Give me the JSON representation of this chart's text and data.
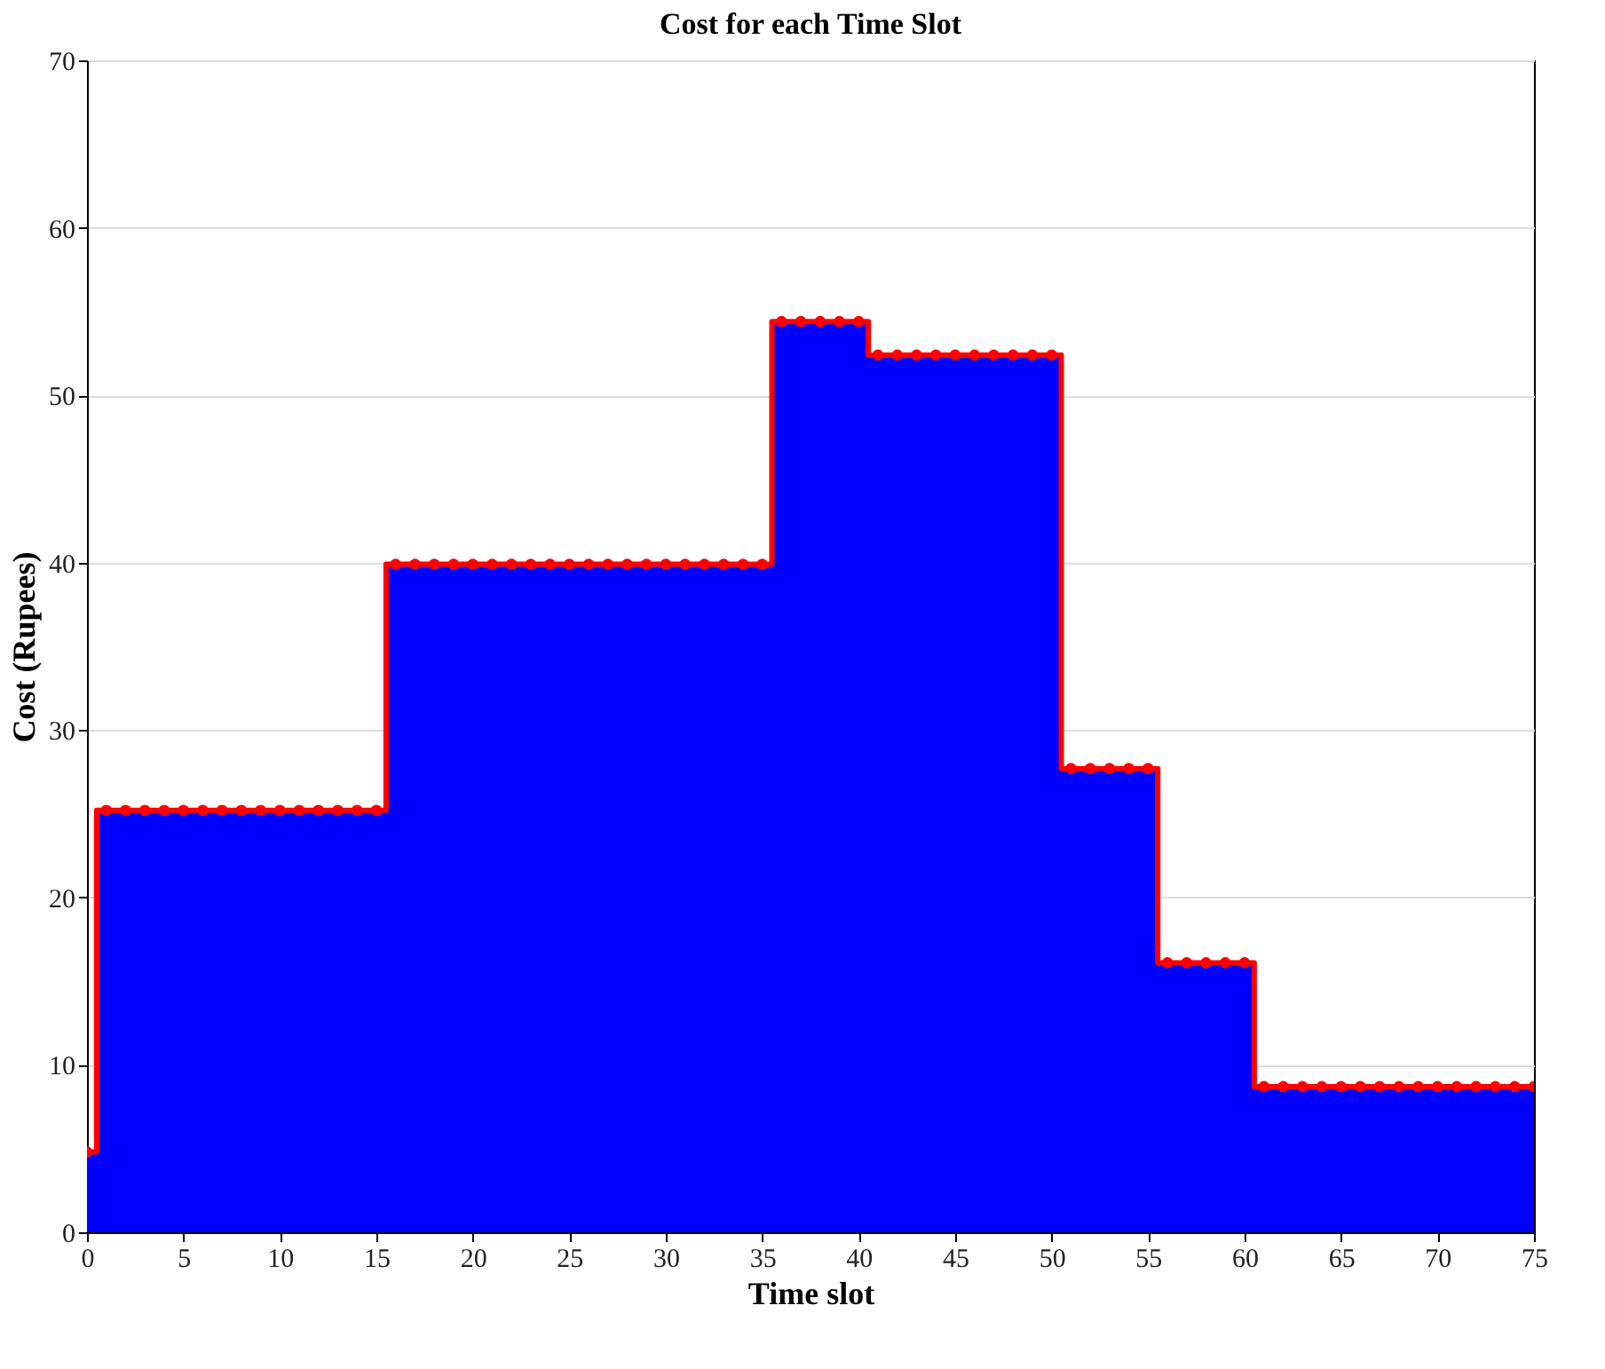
{
  "chart_data": {
    "type": "step",
    "title": "Cost for each Time Slot",
    "xlabel": "Time slot",
    "ylabel": "Cost (Rupees)",
    "x": [
      0,
      1,
      2,
      3,
      4,
      5,
      6,
      7,
      8,
      9,
      10,
      11,
      12,
      13,
      14,
      15,
      16,
      17,
      18,
      19,
      20,
      21,
      22,
      23,
      24,
      25,
      26,
      27,
      28,
      29,
      30,
      31,
      32,
      33,
      34,
      35,
      36,
      37,
      38,
      39,
      40,
      41,
      42,
      43,
      44,
      45,
      46,
      47,
      48,
      49,
      50,
      51,
      52,
      53,
      54,
      55,
      56,
      57,
      58,
      59,
      60,
      61,
      62,
      63,
      64,
      65,
      66,
      67,
      68,
      69,
      70,
      71,
      72,
      73,
      74,
      75
    ],
    "series": [
      {
        "type": "area",
        "color": "#0000ff",
        "values": [
          4.8,
          25.2,
          25.2,
          25.2,
          25.2,
          25.2,
          25.2,
          25.2,
          25.2,
          25.2,
          25.2,
          25.2,
          25.2,
          25.2,
          25.2,
          25.2,
          39.9,
          39.9,
          39.9,
          39.9,
          39.9,
          39.9,
          39.9,
          39.9,
          39.9,
          39.9,
          39.9,
          39.9,
          39.9,
          39.9,
          39.9,
          39.9,
          39.9,
          39.9,
          39.9,
          39.9,
          54.4,
          54.4,
          54.4,
          54.4,
          54.4,
          52.4,
          52.4,
          52.4,
          52.4,
          52.4,
          52.4,
          52.4,
          52.4,
          52.4,
          52.4,
          27.7,
          27.7,
          27.7,
          27.7,
          27.7,
          16.1,
          16.1,
          16.1,
          16.1,
          16.1,
          8.7,
          8.7,
          8.7,
          8.7,
          8.7,
          8.7,
          8.7,
          8.7,
          8.7,
          8.7,
          8.7,
          8.7,
          8.7,
          8.7,
          8.7
        ]
      },
      {
        "type": "step",
        "color": "#ff0000",
        "marker": "circle",
        "values": [
          4.8,
          25.2,
          25.2,
          25.2,
          25.2,
          25.2,
          25.2,
          25.2,
          25.2,
          25.2,
          25.2,
          25.2,
          25.2,
          25.2,
          25.2,
          25.2,
          39.9,
          39.9,
          39.9,
          39.9,
          39.9,
          39.9,
          39.9,
          39.9,
          39.9,
          39.9,
          39.9,
          39.9,
          39.9,
          39.9,
          39.9,
          39.9,
          39.9,
          39.9,
          39.9,
          39.9,
          54.4,
          54.4,
          54.4,
          54.4,
          54.4,
          52.4,
          52.4,
          52.4,
          52.4,
          52.4,
          52.4,
          52.4,
          52.4,
          52.4,
          52.4,
          27.7,
          27.7,
          27.7,
          27.7,
          27.7,
          16.1,
          16.1,
          16.1,
          16.1,
          16.1,
          8.7,
          8.7,
          8.7,
          8.7,
          8.7,
          8.7,
          8.7,
          8.7,
          8.7,
          8.7,
          8.7,
          8.7,
          8.7,
          8.7,
          8.7
        ]
      }
    ],
    "xlim": [
      0,
      75
    ],
    "xticks": [
      0,
      5,
      10,
      15,
      20,
      25,
      30,
      35,
      40,
      45,
      50,
      55,
      60,
      65,
      70,
      75
    ],
    "ylim": [
      0,
      70
    ],
    "yticks": [
      0,
      10,
      20,
      30,
      40,
      50,
      60,
      70
    ],
    "grid": "y"
  }
}
